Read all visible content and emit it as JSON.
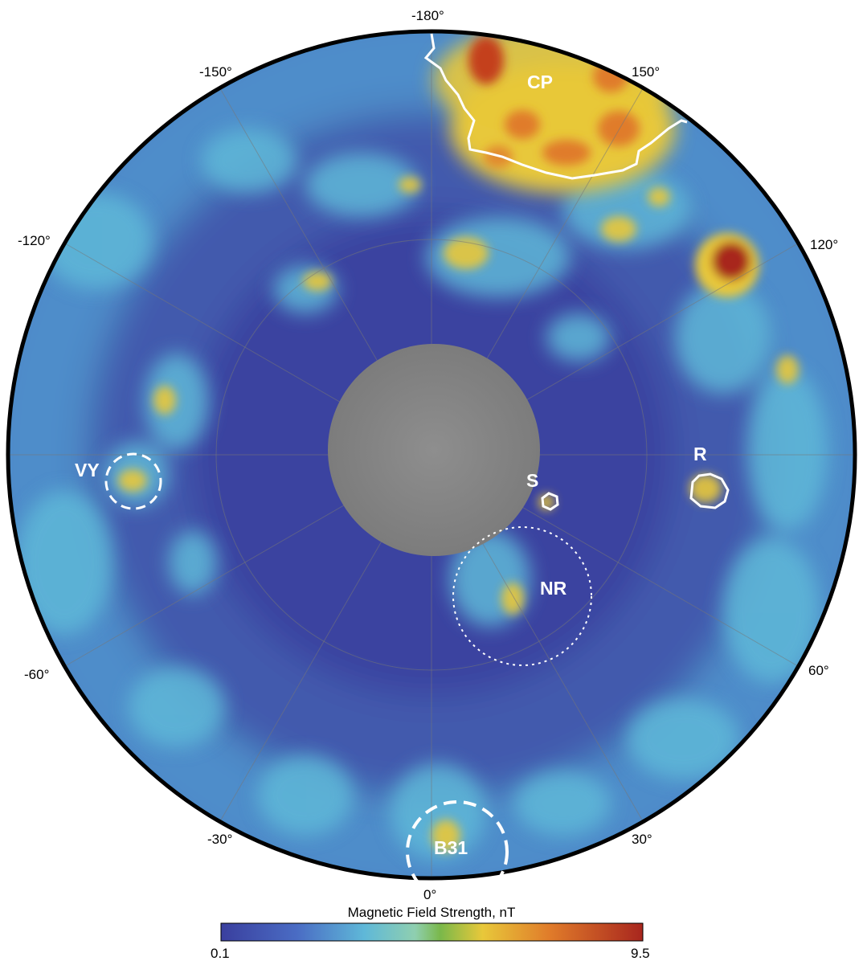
{
  "figure": {
    "colors": {
      "low": "#3a3f9e",
      "mid_low": "#4a78c8",
      "mid": "#5fb8d8",
      "yellow": "#e8c83a",
      "orange": "#e07b2a",
      "high": "#a8261e",
      "polar_cap": "#8a8a8a",
      "outline": "#ffffff",
      "border": "#000000"
    }
  },
  "longitude_labels": {
    "top": "-180°",
    "upper_left": "-150°",
    "upper_right": "150°",
    "left_upper": "-120°",
    "right_upper": "120°",
    "left_lower": "-60°",
    "right_lower": "60°",
    "lower_left": "-30°",
    "lower_right": "30°",
    "bottom": "0°"
  },
  "regions": {
    "cp": "CP",
    "r": "R",
    "s": "S",
    "nr": "NR",
    "vy": "VY",
    "b31": "B31"
  },
  "colorbar": {
    "title": "Magnetic Field Strength, nT",
    "min_label": "0.1",
    "max_label": "9.5",
    "min_value": 0.1,
    "max_value": 9.5
  }
}
